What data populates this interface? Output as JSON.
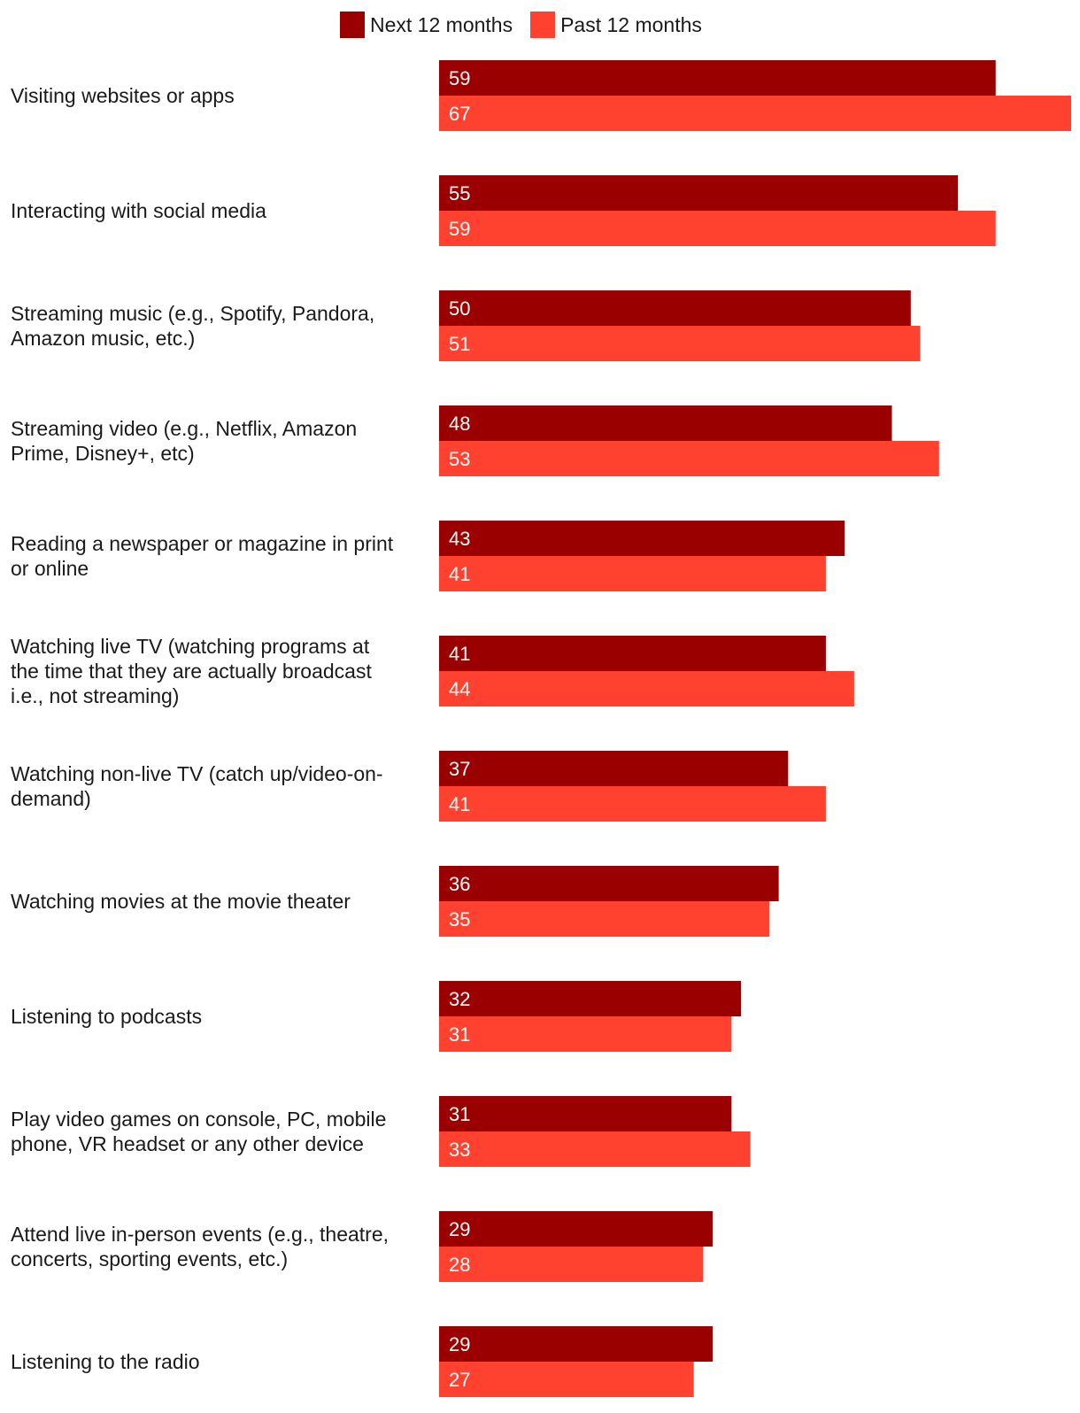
{
  "chart_data": {
    "type": "bar",
    "orientation": "horizontal",
    "grouped": true,
    "legend_position": "top",
    "grid": false,
    "xlim": [
      0,
      67
    ],
    "categories": [
      [
        "Visiting websites or apps"
      ],
      [
        "Interacting with social media"
      ],
      [
        "Streaming music (e.g., Spotify, Pandora,",
        "Amazon music, etc.)"
      ],
      [
        "Streaming video (e.g., Netflix, Amazon",
        "Prime, Disney+, etc)"
      ],
      [
        "Reading a newspaper or magazine in print",
        "or online"
      ],
      [
        "Watching live TV (watching programs at",
        "the time that they are actually broadcast",
        "i.e., not streaming)"
      ],
      [
        "Watching non-live TV (catch up/video-on-",
        "demand)"
      ],
      [
        "Watching movies at the movie theater"
      ],
      [
        "Listening to podcasts"
      ],
      [
        "Play video games on console, PC, mobile",
        "phone, VR headset or any other device"
      ],
      [
        "Attend live in-person events (e.g., theatre,",
        "concerts, sporting events, etc.)"
      ],
      [
        "Listening to the radio"
      ]
    ],
    "series": [
      {
        "name": "Next 12 months",
        "color": "#9b0000",
        "values": [
          59,
          55,
          50,
          48,
          43,
          41,
          37,
          36,
          32,
          31,
          29,
          29
        ]
      },
      {
        "name": "Past 12 months",
        "color": "#ff4230",
        "values": [
          67,
          59,
          51,
          53,
          41,
          44,
          41,
          35,
          31,
          33,
          28,
          27
        ]
      }
    ]
  }
}
